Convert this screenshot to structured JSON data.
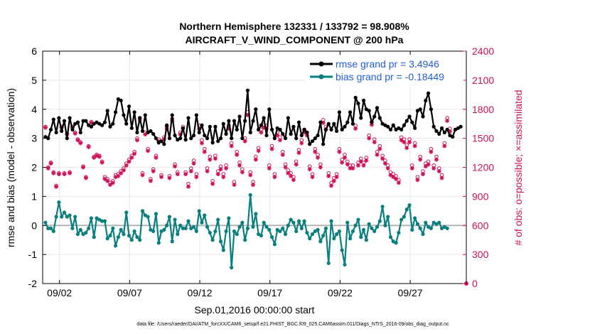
{
  "chart_data": {
    "type": "line",
    "title_line1": "Northern Hemisphere 132331 / 133792 = 98.908%",
    "title_line2": "AIRCRAFT_V_WIND_COMPONENT @ 200 hPa",
    "xlabel": "Sep.01,2016 00:00:00 start",
    "ylabel_left": "rmse and bias (model - observation)",
    "ylabel_right": "# of obs: o=possible; ×=assimilated",
    "footer": "data file: /Users/raeder/DAI/ATM_forcXX/CAM6_setup/f.e21.FHIST_BGC.f09_025.CAM6assim.011/Diags_NTrS_2016-09/obs_diag_output.nc",
    "xlim": [
      0.8,
      31.0
    ],
    "ylim_left": [
      -2,
      6
    ],
    "ylim_right": [
      0,
      2400
    ],
    "x_ticks": [
      {
        "value": 2,
        "label": "09/02"
      },
      {
        "value": 7,
        "label": "09/07"
      },
      {
        "value": 12,
        "label": "09/12"
      },
      {
        "value": 17,
        "label": "09/17"
      },
      {
        "value": 22,
        "label": "09/22"
      },
      {
        "value": 27,
        "label": "09/27"
      }
    ],
    "y_ticks_left": [
      "-2",
      "-1",
      "0",
      "1",
      "2",
      "3",
      "4",
      "5",
      "6"
    ],
    "y_ticks_right": [
      "0",
      "300",
      "600",
      "900",
      "1200",
      "1500",
      "1800",
      "2100",
      "2400"
    ],
    "colors": {
      "rmse": "#000000",
      "bias": "#0a7f7f",
      "obs": "#d0105a",
      "legend_text": "#1f5fd6",
      "zero_line": "#b4b4b4",
      "grid": "#e6e6e6"
    },
    "legend": [
      {
        "label": "rmse grand pr = 3.4946",
        "series": "rmse"
      },
      {
        "label": "bias grand pr = -0.18449",
        "series": "bias"
      }
    ],
    "rmse": [
      3.05,
      3.0,
      3.3,
      3.65,
      3.2,
      3.7,
      3.25,
      3.6,
      3.0,
      3.7,
      3.3,
      3.5,
      3.55,
      3.2,
      3.6,
      3.6,
      3.45,
      3.4,
      3.5,
      3.55,
      3.5,
      3.45,
      3.55,
      3.95,
      3.4,
      3.5,
      3.9,
      4.35,
      4.3,
      3.8,
      3.5,
      4.1,
      3.35,
      3.9,
      3.2,
      3.7,
      3.25,
      3.8,
      3.2,
      3.25,
      3.15,
      3.0,
      2.85,
      2.9,
      2.8,
      3.45,
      3.0,
      3.8,
      3.1,
      2.95,
      3.0,
      3.35,
      2.95,
      3.7,
      3.0,
      3.1,
      3.8,
      3.2,
      3.45,
      3.1,
      3.0,
      3.4,
      2.85,
      3.4,
      2.9,
      3.0,
      3.5,
      3.15,
      3.6,
      3.0,
      3.6,
      3.3,
      3.75,
      3.0,
      3.6,
      4.65,
      3.2,
      3.6,
      4.0,
      3.3,
      3.45,
      3.7,
      3.1,
      4.0,
      3.3,
      3.0,
      3.35,
      3.3,
      3.15,
      3.0,
      3.7,
      3.15,
      3.4,
      3.0,
      3.55,
      3.1,
      3.3,
      3.2,
      2.8,
      2.9,
      3.0,
      3.1,
      3.55,
      2.8,
      3.3,
      3.5,
      3.3,
      3.5,
      3.25,
      3.9,
      3.3,
      3.4,
      3.55,
      3.9,
      3.5,
      4.4,
      4.2,
      3.7,
      4.3,
      4.0,
      3.95,
      3.55,
      3.75,
      4.05,
      3.7,
      3.5,
      3.45,
      3.4,
      3.3,
      3.45,
      3.3,
      3.35,
      3.3,
      3.45,
      3.6,
      3.75,
      3.55,
      3.35,
      3.95,
      4.0,
      3.75,
      4.3,
      4.55,
      4.0,
      3.4,
      3.25,
      3.15,
      3.35,
      3.2,
      3.3,
      3.1,
      3.05,
      3.3,
      3.35,
      3.4
    ],
    "bias": [
      0.1,
      -0.1,
      -0.1,
      -0.2,
      0.3,
      0.8,
      0.3,
      0.45,
      0.3,
      0.35,
      -0.1,
      0.3,
      -0.3,
      -0.15,
      -0.3,
      -0.25,
      -0.1,
      0.25,
      -0.4,
      0.25,
      0.2,
      0.15,
      0.15,
      -0.45,
      -0.35,
      -0.1,
      -0.7,
      -0.4,
      -0.15,
      -0.3,
      0.45,
      -0.35,
      -0.5,
      -0.2,
      -0.4,
      -0.5,
      0.5,
      0.35,
      0.3,
      -0.15,
      -0.2,
      0.4,
      -0.6,
      -0.2,
      -0.15,
      0.0,
      0.3,
      -0.55,
      0.2,
      -0.3,
      0.0,
      -0.1,
      -0.1,
      0.15,
      -0.1,
      -0.05,
      -0.2,
      0.5,
      0.1,
      0.35,
      -0.05,
      -0.25,
      -0.5,
      -0.2,
      0.2,
      -0.55,
      -0.85,
      -0.2,
      0.25,
      -1.45,
      -0.2,
      -0.3,
      -0.05,
      0.1,
      -0.5,
      -0.1,
      1.05,
      -0.05,
      0.4,
      -0.3,
      -0.35,
      0.1,
      -0.05,
      -0.15,
      -0.4,
      -0.65,
      -0.15,
      -0.2,
      -0.1,
      -0.3,
      0.0,
      0.2,
      0.1,
      -0.2,
      0.15,
      -0.1,
      0.15,
      -0.25,
      -0.45,
      -0.3,
      -0.2,
      -0.15,
      -0.55,
      -0.35,
      -0.1,
      -1.3,
      0.15,
      -0.45,
      -0.3,
      -0.2,
      -0.85,
      -1.35,
      0.1,
      -0.45,
      -0.2,
      0.0,
      0.2,
      -0.4,
      -0.15,
      -0.5,
      0.05,
      -0.1,
      -0.2,
      -0.05,
      0.15,
      0.65,
      0.0,
      0.3,
      -0.4,
      -0.55,
      -0.6,
      -0.25,
      0.2,
      0.3,
      0.55,
      0.7,
      -0.15,
      0.25,
      0.05,
      -0.1,
      -0.3,
      0.1,
      -0.05,
      -0.1,
      0.1,
      0.05,
      0.1,
      -0.1,
      -0.05,
      -0.1
    ],
    "obs_assimilated": [
      1610,
      1190,
      1240,
      1140,
      1000,
      1130,
      1610,
      1130,
      1540,
      1140,
      1610,
      1550,
      1480,
      1450,
      1200,
      1090,
      1410,
      1660,
      1300,
      1320,
      1310,
      1250,
      1080,
      1060,
      1020,
      1040,
      1100,
      1110,
      1140,
      1170,
      1220,
      1260,
      1300,
      1340,
      1480,
      1690,
      1120,
      1540,
      1370,
      1060,
      1160,
      1300,
      1470,
      1100,
      1490,
      1600,
      1090,
      1680,
      1210,
      1130,
      1540,
      1600,
      1130,
      1000,
      1160,
      1240,
      1100,
      1600,
      1450,
      1360,
      1160,
      1280,
      1030,
      1290,
      1130,
      1180,
      1100,
      1190,
      1600,
      1420,
      1020,
      1330,
      1220,
      1150,
      1470,
      1740,
      1120,
      1020,
      1280,
      1370,
      1560,
      1610,
      1600,
      1190,
      1390,
      1100,
      1530,
      1480,
      1330,
      1200,
      1140,
      1110,
      1070,
      1230,
      1350,
      1450,
      1560,
      1530,
      1180,
      1100,
      1360,
      1300,
      1200,
      1660,
      1590,
      1110,
      1010,
      1060,
      1100,
      1360,
      1250,
      1300,
      1230,
      1190,
      1190,
      1600,
      1220,
      1260,
      1220,
      1270,
      1500,
      1640,
      1460,
      1330,
      1390,
      1290,
      1240,
      1190,
      1120,
      1100,
      1080,
      1040,
      1480,
      1460,
      1400,
      1460,
      1190,
      1420,
      1070,
      1280,
      1130,
      1210,
      1230,
      1360,
      1190,
      1280,
      1160,
      1090,
      1420,
      1680,
      1570
    ],
    "obs_possible": [
      1620,
      1200,
      1250,
      1150,
      1010,
      1140,
      1620,
      1140,
      1550,
      1150,
      1620,
      1560,
      1490,
      1460,
      1210,
      1100,
      1420,
      1670,
      1310,
      1330,
      1320,
      1260,
      1100,
      1080,
      1040,
      1060,
      1120,
      1130,
      1160,
      1190,
      1240,
      1280,
      1320,
      1360,
      1500,
      1710,
      1140,
      1560,
      1390,
      1080,
      1180,
      1320,
      1490,
      1120,
      1510,
      1620,
      1110,
      1700,
      1230,
      1150,
      1560,
      1620,
      1150,
      1030,
      1190,
      1270,
      1130,
      1630,
      1480,
      1390,
      1190,
      1310,
      1060,
      1320,
      1160,
      1210,
      1130,
      1220,
      1630,
      1450,
      1050,
      1360,
      1250,
      1180,
      1500,
      1770,
      1150,
      1050,
      1310,
      1400,
      1590,
      1640,
      1630,
      1220,
      1420,
      1130,
      1560,
      1510,
      1360,
      1230,
      1170,
      1140,
      1100,
      1260,
      1380,
      1480,
      1590,
      1560,
      1210,
      1130,
      1390,
      1330,
      1230,
      1690,
      1620,
      1140,
      1040,
      1090,
      1130,
      1390,
      1280,
      1330,
      1260,
      1220,
      1220,
      1630,
      1250,
      1290,
      1250,
      1300,
      1530,
      1670,
      1490,
      1360,
      1420,
      1320,
      1270,
      1220,
      1150,
      1130,
      1110,
      1070,
      1510,
      1490,
      1430,
      1490,
      1220,
      1450,
      1100,
      1310,
      1160,
      1240,
      1260,
      1390,
      1220,
      1310,
      1190,
      1120,
      1450,
      1710,
      1600
    ],
    "final_point": {
      "x": 31.0,
      "count": 0
    }
  }
}
